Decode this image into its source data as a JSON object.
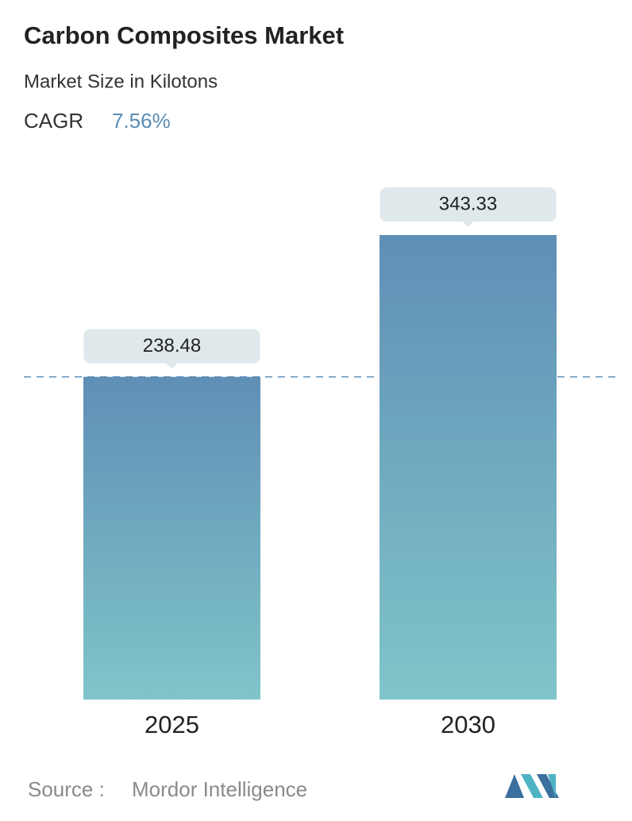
{
  "chart_data": {
    "type": "bar",
    "title": "Carbon Composites Market",
    "subtitle": "Market Size in Kilotons",
    "cagr_label": "CAGR",
    "cagr_value": "7.56%",
    "categories": [
      "2025",
      "2030"
    ],
    "values": [
      238.48,
      343.33
    ],
    "color_top": "#5f8fb6",
    "color_bottom": "#80c5c9",
    "reference_line": true,
    "source_label": "Source :",
    "source": "Mordor Intelligence"
  }
}
